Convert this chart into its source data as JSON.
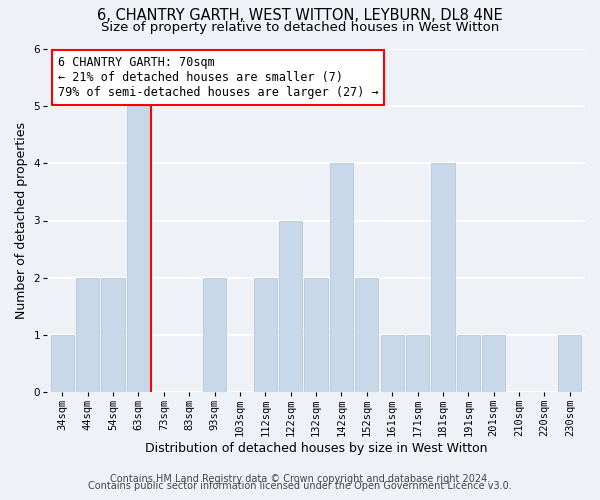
{
  "title": "6, CHANTRY GARTH, WEST WITTON, LEYBURN, DL8 4NE",
  "subtitle": "Size of property relative to detached houses in West Witton",
  "xlabel": "Distribution of detached houses by size in West Witton",
  "ylabel": "Number of detached properties",
  "bar_color": "#c8d8e8",
  "bar_edge_color": "#b0c4d8",
  "vline_x": 3.5,
  "vline_color": "red",
  "annotation_text": "6 CHANTRY GARTH: 70sqm\n← 21% of detached houses are smaller (7)\n79% of semi-detached houses are larger (27) →",
  "annotation_box_color": "white",
  "annotation_box_edge_color": "red",
  "ylim": [
    0,
    6
  ],
  "yticks": [
    0,
    1,
    2,
    3,
    4,
    5,
    6
  ],
  "categories": [
    "34sqm",
    "44sqm",
    "54sqm",
    "63sqm",
    "73sqm",
    "83sqm",
    "93sqm",
    "103sqm",
    "112sqm",
    "122sqm",
    "132sqm",
    "142sqm",
    "152sqm",
    "161sqm",
    "171sqm",
    "181sqm",
    "191sqm",
    "201sqm",
    "210sqm",
    "220sqm",
    "230sqm"
  ],
  "values": [
    1,
    2,
    2,
    5,
    0,
    0,
    2,
    0,
    2,
    3,
    2,
    4,
    2,
    1,
    1,
    4,
    1,
    1,
    0,
    0,
    1
  ],
  "footer_line1": "Contains HM Land Registry data © Crown copyright and database right 2024.",
  "footer_line2": "Contains public sector information licensed under the Open Government Licence v3.0.",
  "background_color": "#eef2f7",
  "grid_color": "#ffffff",
  "title_fontsize": 10.5,
  "subtitle_fontsize": 9.5,
  "tick_fontsize": 7.5,
  "ylabel_fontsize": 9,
  "xlabel_fontsize": 9,
  "footer_fontsize": 7
}
